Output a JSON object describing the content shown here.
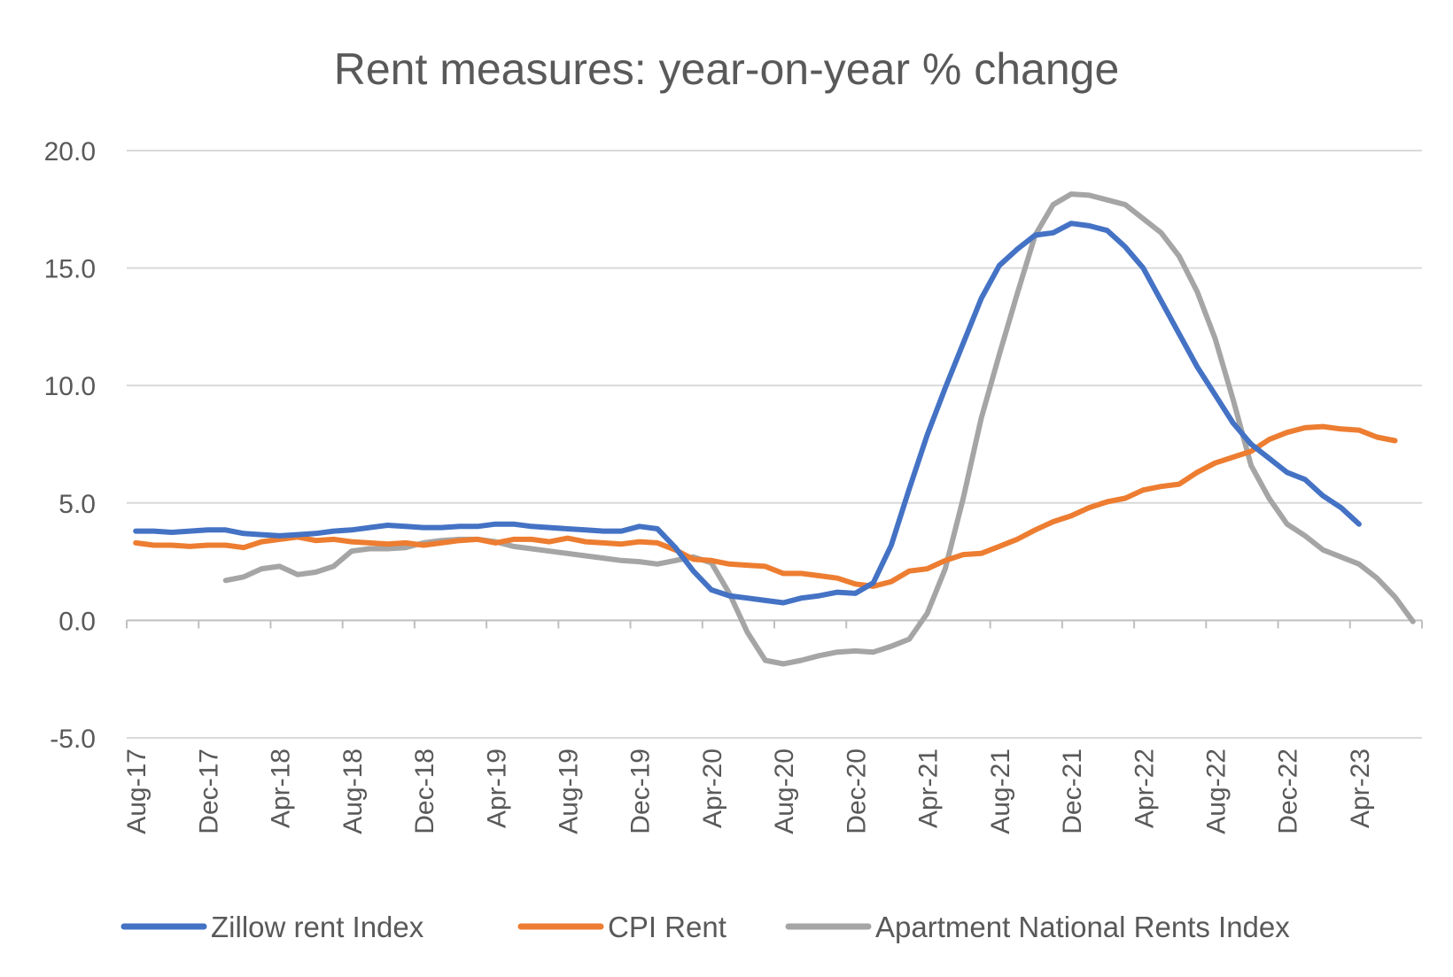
{
  "chart_data": {
    "type": "line",
    "title": "Rent measures: year-on-year % change",
    "xlabel": "",
    "ylabel": "",
    "ylim": [
      -5,
      20
    ],
    "yticks": [
      20,
      15,
      10,
      5,
      0,
      -5
    ],
    "ytick_labels": [
      "20.0",
      "15.0",
      "10.0",
      "5.0",
      "0.0",
      "-5.0"
    ],
    "x_start": "Aug-17",
    "x_count": 72,
    "xtick_labels": [
      "Aug-17",
      "Dec-17",
      "Apr-18",
      "Aug-18",
      "Dec-18",
      "Apr-19",
      "Aug-19",
      "Dec-19",
      "Apr-20",
      "Aug-20",
      "Dec-20",
      "Apr-21",
      "Aug-21",
      "Dec-21",
      "Apr-22",
      "Aug-22",
      "Dec-22",
      "Apr-23"
    ],
    "grid": true,
    "legend_position": "bottom",
    "colors": {
      "zillow": "#4472C4",
      "cpi": "#ED7D31",
      "apartment": "#A5A5A5"
    },
    "series": [
      {
        "name": "Zillow rent Index",
        "color": "#4472C4",
        "values": [
          3.8,
          3.8,
          3.75,
          3.8,
          3.85,
          3.85,
          3.7,
          3.65,
          3.6,
          3.65,
          3.7,
          3.8,
          3.85,
          3.95,
          4.05,
          4.0,
          3.95,
          3.95,
          4.0,
          4.0,
          4.1,
          4.1,
          4.0,
          3.95,
          3.9,
          3.85,
          3.8,
          3.8,
          4.0,
          3.9,
          3.1,
          2.1,
          1.3,
          1.05,
          0.95,
          0.85,
          0.75,
          0.95,
          1.05,
          1.2,
          1.15,
          1.6,
          3.2,
          5.6,
          7.9,
          9.9,
          11.8,
          13.7,
          15.1,
          15.8,
          16.4,
          16.5,
          16.9,
          16.8,
          16.6,
          15.9,
          15.0,
          13.6,
          12.2,
          10.8,
          9.6,
          8.4,
          7.5,
          6.9,
          6.3,
          6.0,
          5.3,
          4.8,
          4.1
        ]
      },
      {
        "name": "CPI Rent",
        "color": "#ED7D31",
        "values": [
          3.3,
          3.2,
          3.2,
          3.15,
          3.2,
          3.2,
          3.1,
          3.35,
          3.45,
          3.55,
          3.4,
          3.45,
          3.35,
          3.3,
          3.25,
          3.3,
          3.2,
          3.3,
          3.4,
          3.45,
          3.3,
          3.45,
          3.45,
          3.35,
          3.5,
          3.35,
          3.3,
          3.25,
          3.35,
          3.3,
          3.0,
          2.6,
          2.55,
          2.4,
          2.35,
          2.3,
          2.0,
          2.0,
          1.9,
          1.8,
          1.55,
          1.45,
          1.65,
          2.1,
          2.2,
          2.55,
          2.8,
          2.85,
          3.15,
          3.45,
          3.85,
          4.2,
          4.45,
          4.8,
          5.05,
          5.2,
          5.55,
          5.7,
          5.8,
          6.3,
          6.7,
          6.95,
          7.2,
          7.7,
          8.0,
          8.2,
          8.25,
          8.15,
          8.1,
          7.8,
          7.65
        ]
      },
      {
        "name": "Apartment National Rents Index",
        "color": "#A5A5A5",
        "start_index": 5,
        "values": [
          1.7,
          1.85,
          2.2,
          2.3,
          1.95,
          2.05,
          2.3,
          2.95,
          3.05,
          3.05,
          3.1,
          3.3,
          3.4,
          3.45,
          3.45,
          3.35,
          3.15,
          3.05,
          2.95,
          2.85,
          2.75,
          2.65,
          2.55,
          2.5,
          2.4,
          2.55,
          2.7,
          2.45,
          1.15,
          -0.5,
          -1.7,
          -1.85,
          -1.7,
          -1.5,
          -1.35,
          -1.3,
          -1.35,
          -1.1,
          -0.8,
          0.3,
          2.2,
          5.2,
          8.6,
          11.3,
          13.9,
          16.4,
          17.7,
          18.15,
          18.1,
          17.9,
          17.7,
          17.1,
          16.5,
          15.5,
          14.0,
          12.0,
          9.4,
          6.6,
          5.2,
          4.1,
          3.6,
          3.0,
          2.7,
          2.4,
          1.8,
          1.0,
          -0.05
        ]
      }
    ]
  }
}
